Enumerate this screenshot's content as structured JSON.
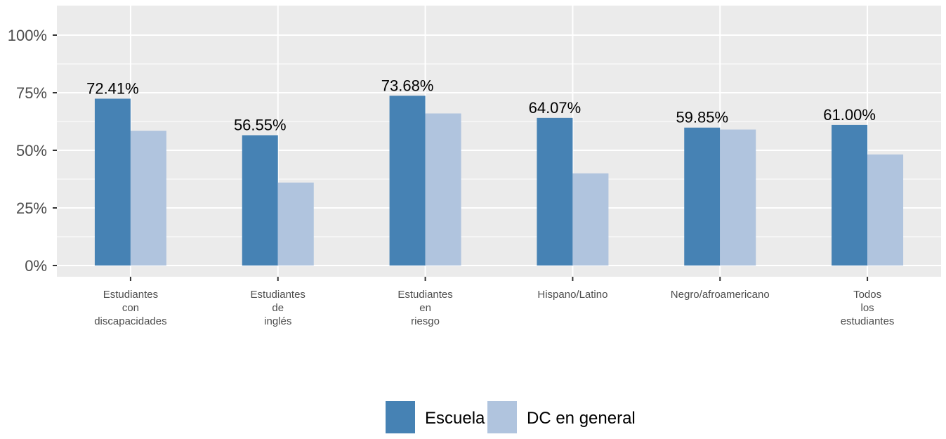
{
  "chart_data": {
    "type": "bar",
    "categories": [
      [
        "Estudiantes",
        "con",
        "discapacidades"
      ],
      [
        "Estudiantes",
        "de",
        "inglés"
      ],
      [
        "Estudiantes",
        "en",
        "riesgo"
      ],
      [
        "Hispano/Latino"
      ],
      [
        "Negro/afroamericano"
      ],
      [
        "Todos",
        "los",
        "estudiantes"
      ]
    ],
    "series": [
      {
        "name": "Escuela",
        "color": "#4682b4",
        "values": [
          72.41,
          56.55,
          73.68,
          64.07,
          59.85,
          61.0
        ],
        "labels": [
          "72.41%",
          "56.55%",
          "73.68%",
          "64.07%",
          "59.85%",
          "61.00%"
        ]
      },
      {
        "name": "DC en general",
        "color": "#b0c4de",
        "values": [
          58.5,
          36.0,
          66.0,
          40.0,
          59.0,
          48.2
        ]
      }
    ],
    "ylim": [
      0,
      100
    ],
    "yticks": [
      0,
      25,
      50,
      75,
      100
    ],
    "ytick_labels": [
      "0%",
      "25%",
      "50%",
      "75%",
      "100%"
    ],
    "grid": true,
    "panel_color": "#ebebeb",
    "legend_position": "bottom"
  }
}
